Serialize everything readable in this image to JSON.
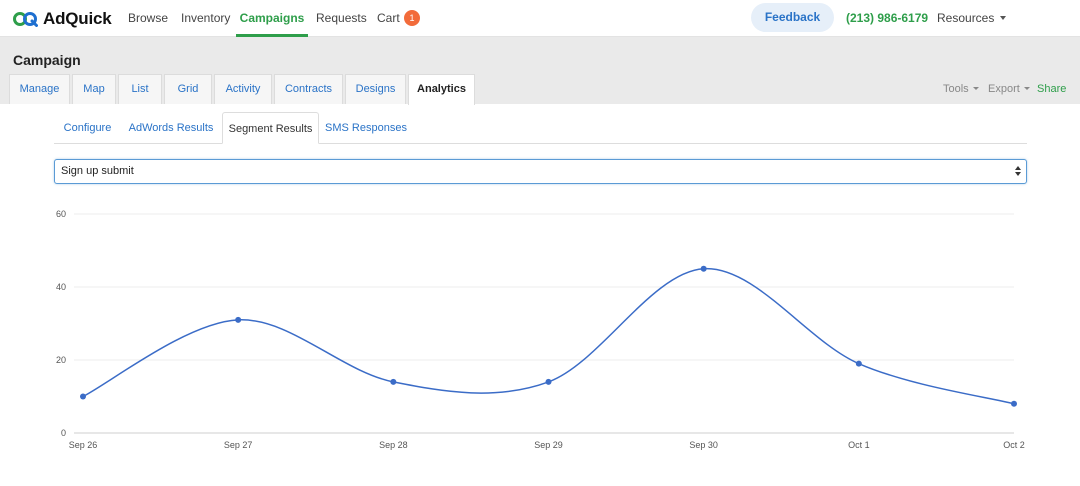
{
  "brand": {
    "logo_text": "AdQuick",
    "accent": "#2e9e4a",
    "link": "#2a73c7"
  },
  "nav": {
    "browse": "Browse",
    "inventory": "Inventory",
    "campaigns": "Campaigns",
    "requests": "Requests",
    "cart": "Cart",
    "cart_count": "1",
    "feedback": "Feedback",
    "phone": "(213) 986-6179",
    "resources": "Resources"
  },
  "campaign": {
    "title": "Campaign",
    "tabs": [
      "Manage",
      "Map",
      "List",
      "Grid",
      "Activity",
      "Contracts",
      "Designs",
      "Analytics"
    ],
    "active_tab": "Analytics",
    "tools": "Tools",
    "export": "Export",
    "share": "Share"
  },
  "analytics": {
    "subtabs": [
      "Configure",
      "AdWords Results",
      "Segment Results",
      "SMS Responses"
    ],
    "active_subtab": "Segment Results",
    "select_value": "Sign up submit"
  },
  "chart_data": {
    "type": "line",
    "categories": [
      "Sep 26",
      "Sep 27",
      "Sep 28",
      "Sep 29",
      "Sep 30",
      "Oct 1",
      "Oct 2"
    ],
    "values": [
      10,
      31,
      14,
      14,
      45,
      19,
      8
    ],
    "ylim": [
      0,
      60
    ],
    "yticks": [
      0,
      20,
      40,
      60
    ],
    "grid": true,
    "smooth": true,
    "color": "#3b6cc7"
  }
}
